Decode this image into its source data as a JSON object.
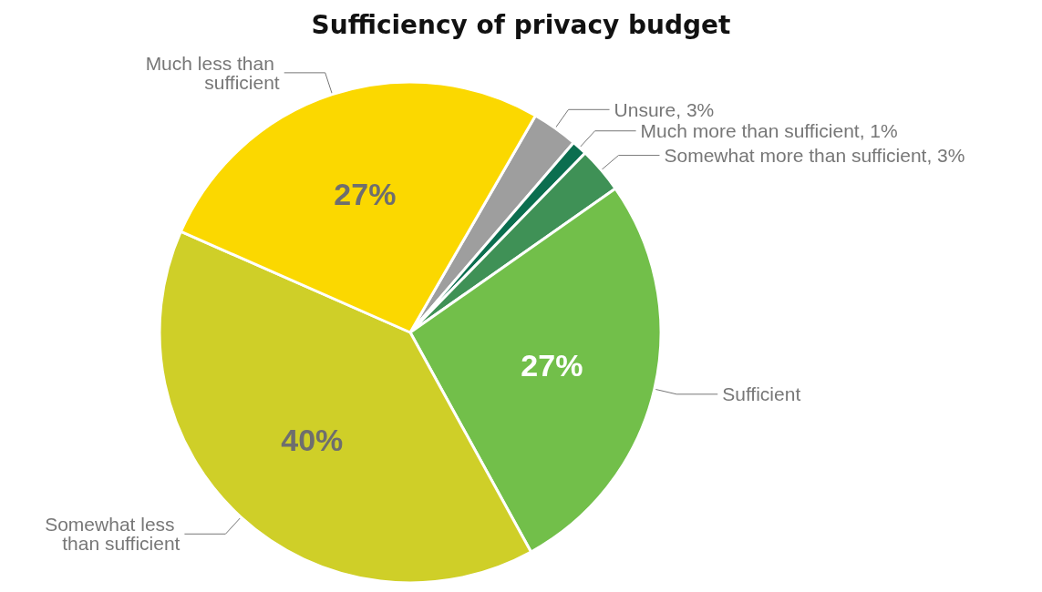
{
  "chart_data": {
    "type": "pie",
    "title": "Sufficiency of privacy budget",
    "categories": [
      "Unsure, 3%",
      "Much more than sufficient, 1%",
      "Somewhat more than sufficient, 3%",
      "Sufficient",
      "Somewhat less than sufficient",
      "Much less than sufficient"
    ],
    "values": [
      3,
      1,
      3,
      27,
      40,
      27
    ],
    "colors": [
      "#9e9e9e",
      "#0b6e4f",
      "#3f9156",
      "#72bf4a",
      "#cfcf28",
      "#fbd800"
    ],
    "value_labels": [
      null,
      null,
      null,
      "27%",
      "40%",
      "27%"
    ],
    "legend": false
  }
}
